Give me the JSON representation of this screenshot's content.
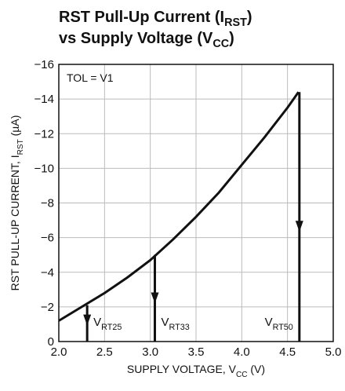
{
  "chart_data": {
    "type": "line",
    "title": [
      {
        "text": "RST Pull-Up Current (I",
        "sub": "RST",
        "end": ")"
      },
      {
        "text": "vs Supply Voltage (V",
        "sub": "CC",
        "end": ")"
      }
    ],
    "x_label": {
      "text": "SUPPLY VOLTAGE, V",
      "sub": "CC",
      "end": " (V)"
    },
    "y_label": {
      "text": "RST PULL-UP CURRENT, I",
      "sub": "RST",
      "end": " (µA)"
    },
    "note": "TOL = V1",
    "x": [
      2.0,
      2.25,
      2.5,
      2.75,
      3.0,
      3.25,
      3.5,
      3.75,
      4.0,
      4.25,
      4.5,
      4.62
    ],
    "series": [
      {
        "name": "TOL = V1",
        "color": "#111111",
        "values": [
          -1.2,
          -2.0,
          -2.8,
          -3.7,
          -4.7,
          -5.9,
          -7.2,
          -8.6,
          -10.2,
          -11.8,
          -13.5,
          -14.4
        ]
      }
    ],
    "thresholds": [
      {
        "x": 2.31,
        "y": -2.1,
        "text": "V",
        "sub": "RT25"
      },
      {
        "x": 3.05,
        "y": -5.0,
        "text": "V",
        "sub": "RT33"
      },
      {
        "x": 4.63,
        "y": -14.4,
        "text": "V",
        "sub": "RT50"
      }
    ],
    "xlim": [
      2.0,
      5.0
    ],
    "xticks": [
      {
        "value": 2,
        "label": "2.0"
      },
      2.5,
      {
        "value": 3,
        "label": "3.0"
      },
      3.5,
      {
        "value": 4,
        "label": "4.0"
      },
      4.5,
      {
        "value": 5,
        "label": "5.0"
      }
    ],
    "ylim": [
      0,
      -16
    ],
    "yticks": [
      {
        "value": 0,
        "label": "0"
      },
      {
        "value": -2,
        "label": "−2"
      },
      {
        "value": -4,
        "label": "−4"
      },
      {
        "value": -6,
        "label": "−6"
      },
      {
        "value": -8,
        "label": "−8"
      },
      {
        "value": -10,
        "label": "−10"
      },
      {
        "value": -12,
        "label": "−12"
      },
      {
        "value": -14,
        "label": "−14"
      },
      {
        "value": -16,
        "label": "−16"
      }
    ],
    "grid": true
  }
}
